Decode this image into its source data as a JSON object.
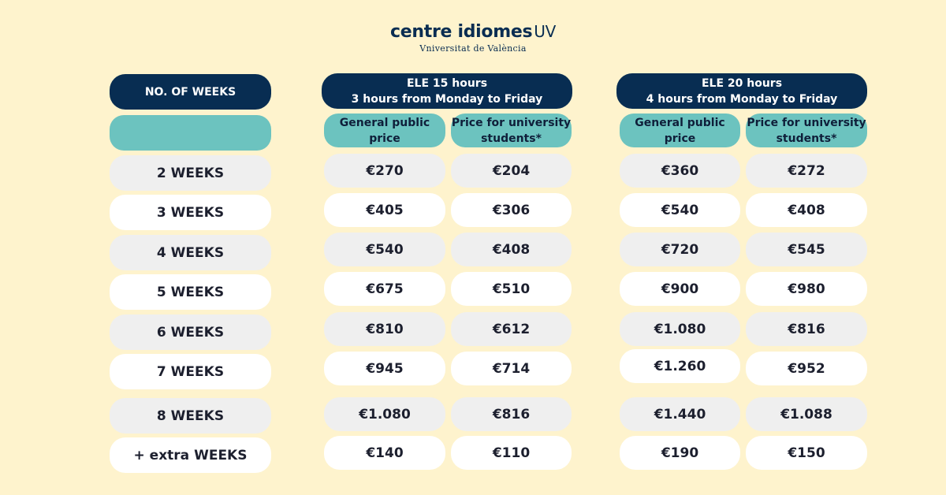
{
  "logo": {
    "main": "centre idiomes",
    "uv": "UV",
    "sub": "Vniversitat de València"
  },
  "header": {
    "weeks_label": "NO. OF WEEKS",
    "col15_line1": "ELE 15 hours",
    "col15_line2": "3 hours from Monday to Friday",
    "col20_line1": "ELE 20 hours",
    "col20_line2": "4 hours from Monday to Friday",
    "general_line1": "General public",
    "general_line2": "price",
    "student_line1": "Price for university",
    "student_line2": "students*"
  },
  "rows": [
    {
      "weeks": "2 WEEKS",
      "g15": "€270",
      "s15": "€204",
      "g20": "€360",
      "s20": "€272"
    },
    {
      "weeks": "3 WEEKS",
      "g15": "€405",
      "s15": "€306",
      "g20": "€540",
      "s20": "€408"
    },
    {
      "weeks": "4 WEEKS",
      "g15": "€540",
      "s15": "€408",
      "g20": "€720",
      "s20": "€545"
    },
    {
      "weeks": "5 WEEKS",
      "g15": "€675",
      "s15": "€510",
      "g20": "€900",
      "s20": "€980"
    },
    {
      "weeks": "6 WEEKS",
      "g15": "€810",
      "s15": "€612",
      "g20": "€1.080",
      "s20": "€816"
    },
    {
      "weeks": "7 WEEKS",
      "g15": "€945",
      "s15": "€714",
      "g20": "€1.260",
      "s20": "€952"
    },
    {
      "weeks": "8 WEEKS",
      "g15": "€1.080",
      "s15": "€816",
      "g20": "€1.440",
      "s20": "€1.088"
    },
    {
      "weeks": "+ extra WEEKS",
      "g15": "€140",
      "s15": "€110",
      "g20": "€190",
      "s20": "€150"
    }
  ]
}
